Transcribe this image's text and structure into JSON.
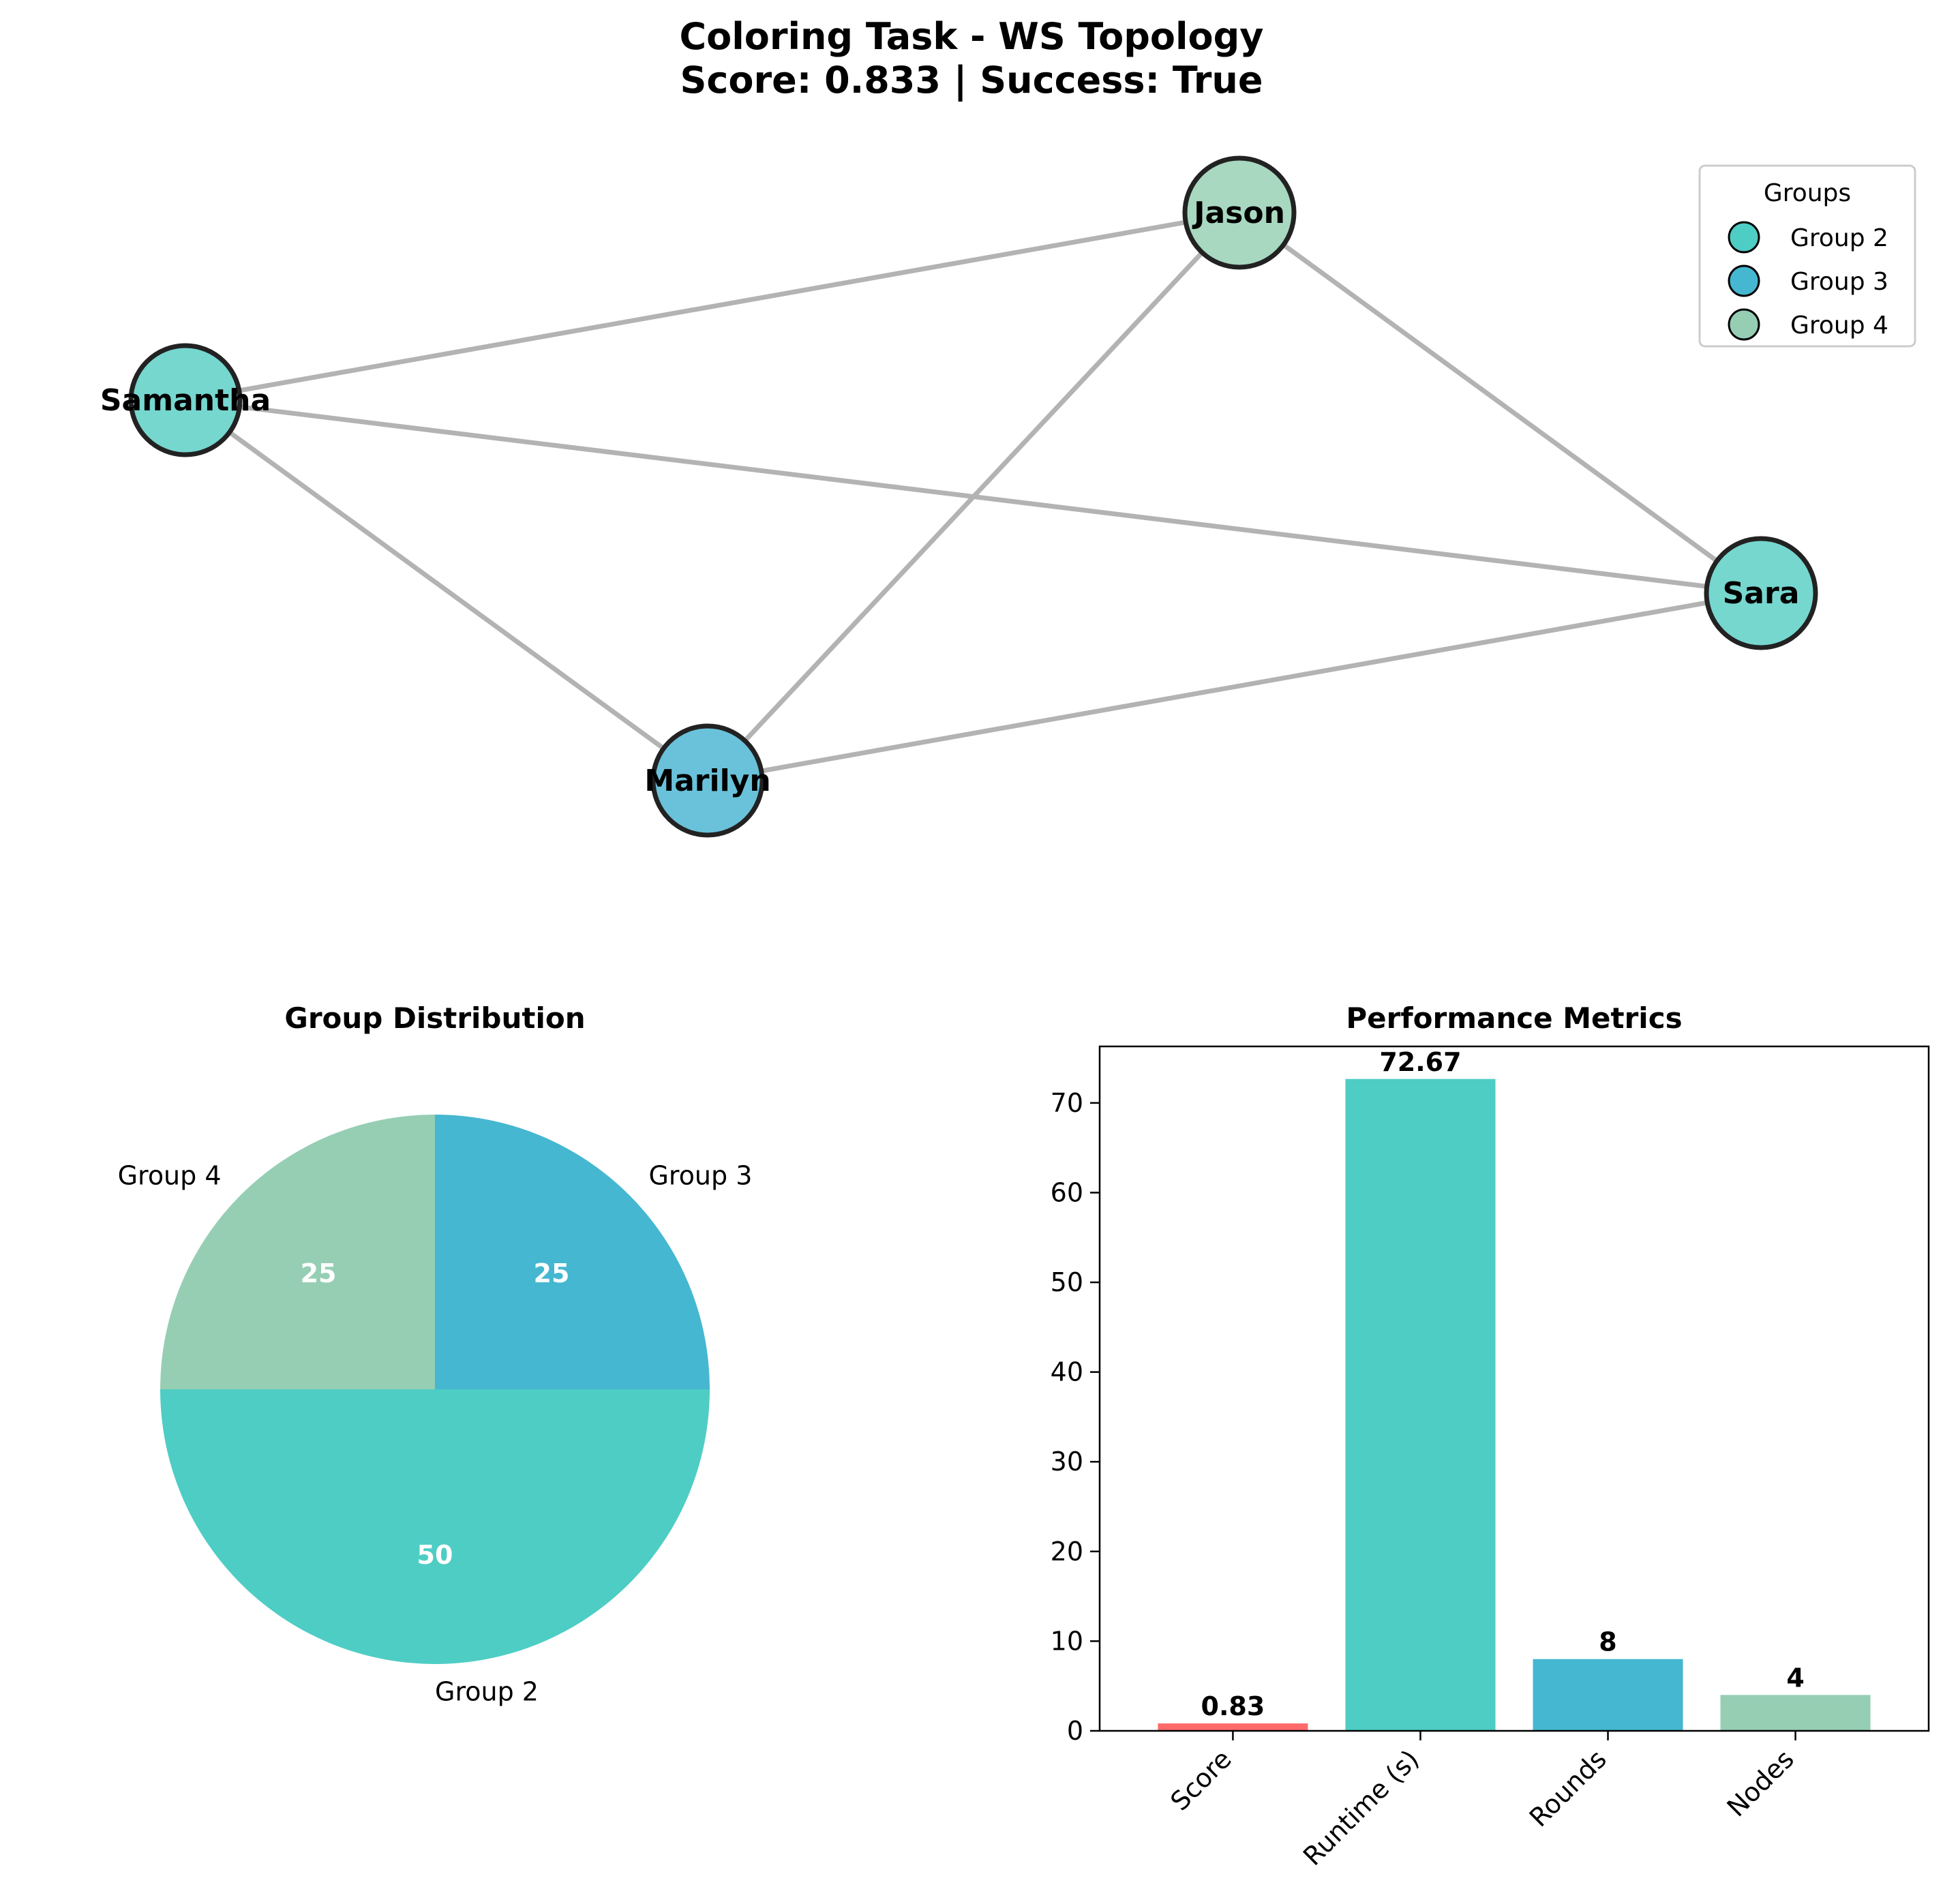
{
  "figure": {
    "title_line1": "Coloring Task - WS Topology",
    "title_line2": "Score: 0.833 | Success: True"
  },
  "chart_data": [
    {
      "type": "network",
      "nodes": [
        {
          "id": "Jason",
          "group": "Group 4",
          "color": "#a8d8c0"
        },
        {
          "id": "Samantha",
          "group": "Group 2",
          "color": "#76d7cf"
        },
        {
          "id": "Sara",
          "group": "Group 2",
          "color": "#76d7cf"
        },
        {
          "id": "Marilyn",
          "group": "Group 3",
          "color": "#6ac2da"
        }
      ],
      "edges": [
        [
          "Samantha",
          "Jason"
        ],
        [
          "Samantha",
          "Sara"
        ],
        [
          "Samantha",
          "Marilyn"
        ],
        [
          "Jason",
          "Marilyn"
        ],
        [
          "Jason",
          "Sara"
        ],
        [
          "Marilyn",
          "Sara"
        ]
      ],
      "edge_color": "#b3b3b3",
      "legend": {
        "title": "Groups",
        "placement": "top-right",
        "entries": [
          {
            "label": "Group 2",
            "color": "#4ecdc4"
          },
          {
            "label": "Group 3",
            "color": "#45b7d1"
          },
          {
            "label": "Group 4",
            "color": "#96ceb4"
          }
        ]
      }
    },
    {
      "type": "pie",
      "title": "Group Distribution",
      "slices": [
        {
          "label": "Group 2",
          "value": 50,
          "pct_label": "50",
          "color": "#4ecdc4"
        },
        {
          "label": "Group 3",
          "value": 25,
          "pct_label": "25",
          "color": "#45b7d1"
        },
        {
          "label": "Group 4",
          "value": 25,
          "pct_label": "25",
          "color": "#96ceb4"
        }
      ]
    },
    {
      "type": "bar",
      "title": "Performance Metrics",
      "categories": [
        "Score",
        "Runtime (s)",
        "Rounds",
        "Nodes"
      ],
      "values": [
        0.83,
        72.67,
        8,
        4
      ],
      "value_labels": [
        "0.83",
        "72.67",
        "8",
        "4"
      ],
      "colors": [
        "#ff6b6b",
        "#4ecdc4",
        "#45b7d1",
        "#96ceb4"
      ],
      "ylim": [
        0,
        76.3
      ],
      "yticks": [
        0,
        10,
        20,
        30,
        40,
        50,
        60,
        70
      ],
      "grid": false
    }
  ]
}
